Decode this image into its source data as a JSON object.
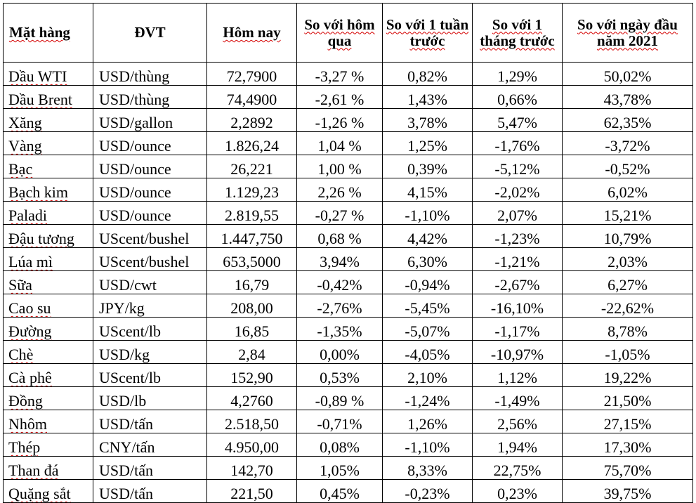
{
  "table": {
    "headers": [
      "Mặt hàng",
      "ĐVT",
      "Hôm nay",
      "So với hôm qua",
      "So với 1 tuần trước",
      "So với 1 tháng trước",
      "So với ngày đầu năm 2021"
    ],
    "rows": [
      [
        "Dầu WTI",
        "USD/thùng",
        "72,7900",
        "-3,27 %",
        "0,82%",
        "1,29%",
        "50,02%"
      ],
      [
        "Dầu Brent",
        "USD/thùng",
        "74,4900",
        "-2,61 %",
        "1,43%",
        "0,66%",
        "43,78%"
      ],
      [
        "Xăng",
        "USD/gallon",
        "2,2892",
        "-1,26 %",
        "3,78%",
        "5,47%",
        "62,35%"
      ],
      [
        "Vàng",
        "USD/ounce",
        "1.826,24",
        "1,04 %",
        "1,25%",
        "-1,76%",
        "-3,72%"
      ],
      [
        "Bạc",
        "USD/ounce",
        "26,221",
        "1,00 %",
        "0,39%",
        "-5,12%",
        "-0,52%"
      ],
      [
        "Bạch kim",
        "USD/ounce",
        "1.129,23",
        "2,26 %",
        "4,15%",
        "-2,02%",
        "6,02%"
      ],
      [
        "Paladi",
        "USD/ounce",
        "2.819,55",
        "-0,27 %",
        "-1,10%",
        "2,07%",
        "15,21%"
      ],
      [
        "Đậu tương",
        "UScent/bushel",
        "1.447,750",
        "0,68 %",
        "4,42%",
        "-1,23%",
        "10,79%"
      ],
      [
        "Lúa mì",
        "UScent/bushel",
        "653,5000",
        "3,94%",
        "6,30%",
        "-1,21%",
        "2,03%"
      ],
      [
        "Sữa",
        "USD/cwt",
        "16,79",
        "-0,42%",
        "-0,94%",
        "-2,67%",
        "6,27%"
      ],
      [
        "Cao su",
        "JPY/kg",
        "208,00",
        "-2,76%",
        "-5,45%",
        "-16,10%",
        "-22,62%"
      ],
      [
        "Đường",
        "UScent/lb",
        "16,85",
        "-1,35%",
        "-5,07%",
        "-1,17%",
        "8,78%"
      ],
      [
        "Chè",
        "USD/kg",
        "2,84",
        "0,00%",
        "-4,05%",
        "-10,97%",
        "-1,05%"
      ],
      [
        "Cà phê",
        "UScent/lb",
        "152,90",
        "0,53%",
        "2,10%",
        "1,12%",
        "19,22%"
      ],
      [
        "Đồng",
        "USD/lb",
        "4,2760",
        "-0,89 %",
        "-1,24%",
        "-1,49%",
        "21,50%"
      ],
      [
        "Nhôm",
        "USD/tấn",
        "2.518,50",
        "-0,71%",
        "1,26%",
        "2,56%",
        "27,15%"
      ],
      [
        "Thép",
        "CNY/tấn",
        "4.950,00",
        "0,08%",
        "-1,10%",
        "1,94%",
        "17,30%"
      ],
      [
        "Than đá",
        "USD/tấn",
        "142,70",
        "1,05%",
        "8,33%",
        "22,75%",
        "75,70%"
      ],
      [
        "Quặng sắt",
        "USD/tấn",
        "221,50",
        "0,45%",
        "-0,23%",
        "0,23%",
        "39,75%"
      ]
    ]
  }
}
